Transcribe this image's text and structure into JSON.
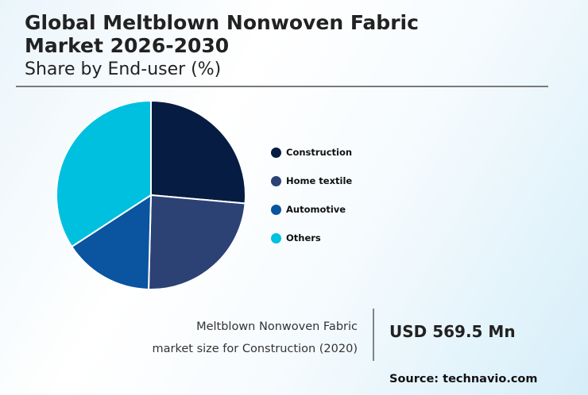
{
  "header": {
    "title_line1": "Global Meltblown Nonwoven Fabric",
    "title_line2": "Market 2026-2030",
    "subtitle": "Share by End-user (%)"
  },
  "legend": [
    {
      "label": "Construction",
      "color": "#071c42"
    },
    {
      "label": "Home textile",
      "color": "#2c4274"
    },
    {
      "label": "Automotive",
      "color": "#0a54a0"
    },
    {
      "label": "Others",
      "color": "#00c0e0"
    }
  ],
  "stat": {
    "label_line1": "Meltblown Nonwoven Fabric",
    "label_line2": "market size for Construction (2020)",
    "value": "USD 569.5 Mn"
  },
  "source": "Source: technavio.com",
  "chart_data": {
    "type": "pie",
    "title": "Global Meltblown Nonwoven Fabric Market 2026-2030",
    "subtitle": "Share by End-user (%)",
    "categories": [
      "Construction",
      "Home textile",
      "Automotive",
      "Others"
    ],
    "values": [
      26.4,
      24.0,
      15.4,
      34.2
    ],
    "colors": [
      "#071c42",
      "#2c4274",
      "#0a54a0",
      "#00c0e0"
    ],
    "start_angle_deg": 0,
    "direction": "clockwise",
    "legend_position": "right",
    "annotation": "Meltblown Nonwoven Fabric market size for Construction (2020): USD 569.5 Mn"
  }
}
